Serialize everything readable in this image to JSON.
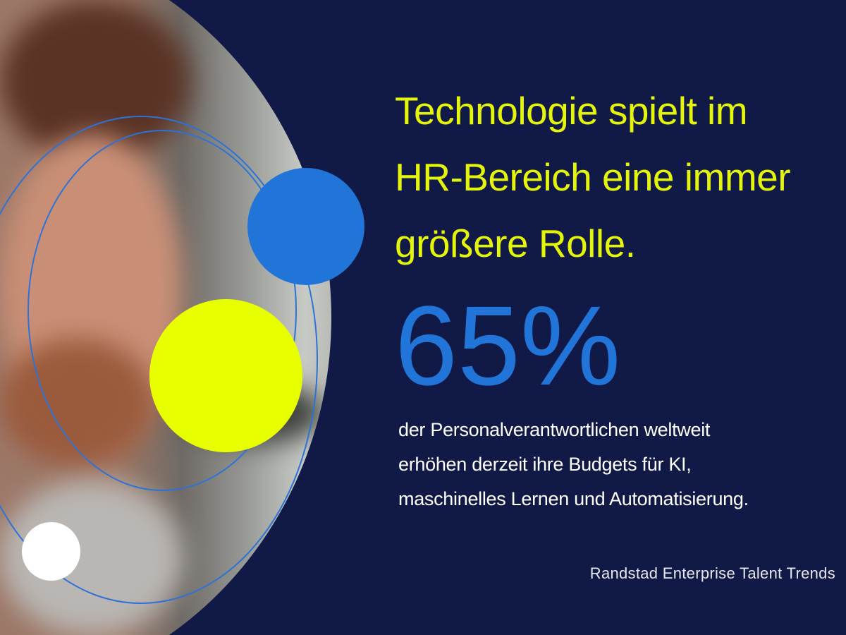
{
  "headline": {
    "lines": [
      "Technologie spielt im",
      "HR-Bereich eine immer",
      "größere Rolle."
    ]
  },
  "stat": {
    "value": "65%"
  },
  "body": {
    "lines": [
      "der Personalverantwortlichen weltweit",
      "erhöhen derzeit ihre Budgets für KI,",
      "maschinelles Lernen und Automatisierung."
    ]
  },
  "source": "Randstad Enterprise Talent Trends",
  "colors": {
    "background": "#111a47",
    "headline": "#e4f50a",
    "stat": "#2175d9",
    "dot_blue": "#2175d9",
    "dot_yellow": "#e8ff00",
    "dot_white": "#ffffff"
  }
}
